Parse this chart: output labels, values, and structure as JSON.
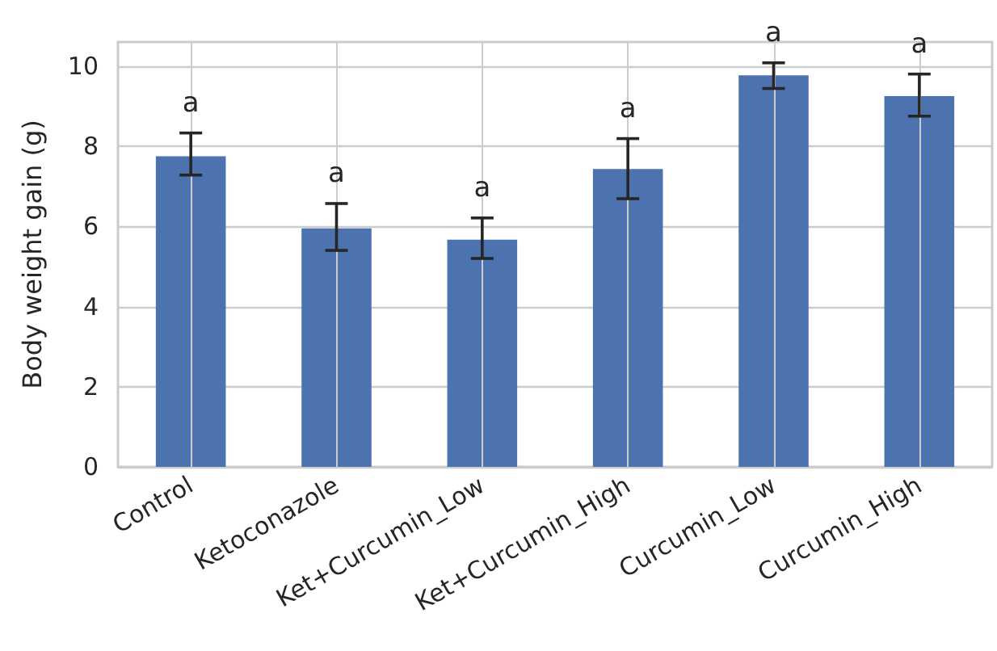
{
  "chart_data": {
    "type": "bar",
    "ylabel": "Body weight gain (g)",
    "categories": [
      "Control",
      "Ketoconazole",
      "Ket+Curcumin_Low",
      "Ket+Curcumin_High",
      "Curcumin_Low",
      "Curcumin_High"
    ],
    "values": [
      7.75,
      5.95,
      5.67,
      7.43,
      9.77,
      9.25
    ],
    "errors": [
      [
        7.28,
        8.33
      ],
      [
        5.4,
        6.57
      ],
      [
        5.2,
        6.21
      ],
      [
        6.69,
        8.19
      ],
      [
        9.44,
        10.08
      ],
      [
        8.75,
        9.8
      ]
    ],
    "color": "#4c72b0",
    "ylim": [
      0,
      10.6
    ],
    "yticks": [
      0,
      2,
      4,
      6,
      8,
      10
    ],
    "grid": true,
    "annotations": [
      "a",
      "a",
      "a",
      "a",
      "a",
      "a"
    ]
  }
}
